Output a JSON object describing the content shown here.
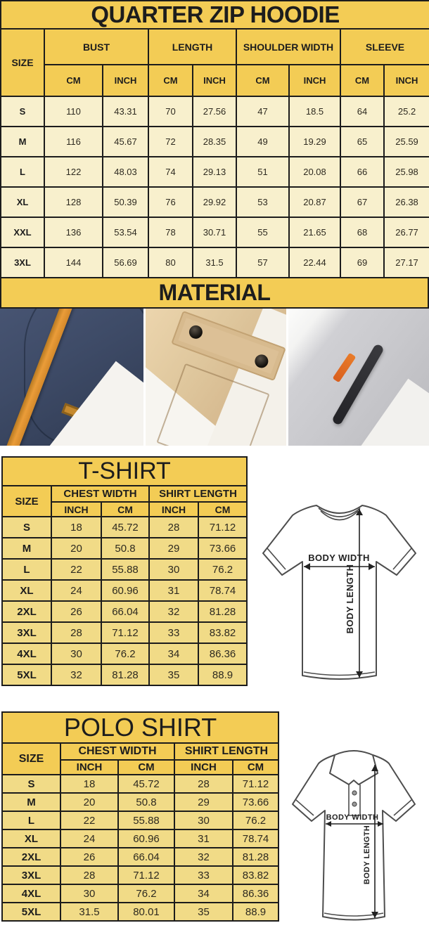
{
  "colors": {
    "header_gold": "#f3cc55",
    "hoodie_row_cream": "#f8f0cd",
    "shirt_row_gold": "#f1db87",
    "table_border": "#1c1c1c",
    "accent_orange": "#e8943a",
    "fabric_navy": "#3c4963",
    "fabric_khaki": "#d8bc92",
    "fabric_gray": "#c6c6ca"
  },
  "hoodie_table": {
    "title": "QUARTER ZIP HOODIE",
    "size_label": "SIZE",
    "col_groups": [
      "BUST",
      "LENGTH",
      "SHOULDER WIDTH",
      "SLEEVE"
    ],
    "unit_labels": [
      "CM",
      "INCH"
    ],
    "rows": [
      {
        "size": "S",
        "values": [
          "110",
          "43.31",
          "70",
          "27.56",
          "47",
          "18.5",
          "64",
          "25.2"
        ]
      },
      {
        "size": "M",
        "values": [
          "116",
          "45.67",
          "72",
          "28.35",
          "49",
          "19.29",
          "65",
          "25.59"
        ]
      },
      {
        "size": "L",
        "values": [
          "122",
          "48.03",
          "74",
          "29.13",
          "51",
          "20.08",
          "66",
          "25.98"
        ]
      },
      {
        "size": "XL",
        "values": [
          "128",
          "50.39",
          "76",
          "29.92",
          "53",
          "20.87",
          "67",
          "26.38"
        ]
      },
      {
        "size": "XXL",
        "values": [
          "136",
          "53.54",
          "78",
          "30.71",
          "55",
          "21.65",
          "68",
          "26.77"
        ]
      },
      {
        "size": "3XL",
        "values": [
          "144",
          "56.69",
          "80",
          "31.5",
          "57",
          "22.44",
          "69",
          "27.17"
        ]
      }
    ]
  },
  "material": {
    "title": "MATERIAL",
    "photos": [
      {
        "name": "navy-fleece-with-orange-strap"
      },
      {
        "name": "khaki-cargo-pocket-with-snaps"
      },
      {
        "name": "gray-heather-fleece-with-zipper"
      }
    ]
  },
  "tshirt_table": {
    "title": "T-SHIRT",
    "size_label": "SIZE",
    "col_groups": [
      "CHEST WIDTH",
      "SHIRT LENGTH"
    ],
    "unit_labels": [
      "INCH",
      "CM"
    ],
    "rows": [
      {
        "size": "S",
        "values": [
          "18",
          "45.72",
          "28",
          "71.12"
        ]
      },
      {
        "size": "M",
        "values": [
          "20",
          "50.8",
          "29",
          "73.66"
        ]
      },
      {
        "size": "L",
        "values": [
          "22",
          "55.88",
          "30",
          "76.2"
        ]
      },
      {
        "size": "XL",
        "values": [
          "24",
          "60.96",
          "31",
          "78.74"
        ]
      },
      {
        "size": "2XL",
        "values": [
          "26",
          "66.04",
          "32",
          "81.28"
        ]
      },
      {
        "size": "3XL",
        "values": [
          "28",
          "71.12",
          "33",
          "83.82"
        ]
      },
      {
        "size": "4XL",
        "values": [
          "30",
          "76.2",
          "34",
          "86.36"
        ]
      },
      {
        "size": "5XL",
        "values": [
          "32",
          "81.28",
          "35",
          "88.9"
        ]
      }
    ],
    "diagram": {
      "body_width_label": "BODY WIDTH",
      "body_length_label": "BODY LENGTH"
    }
  },
  "polo_table": {
    "title": "POLO SHIRT",
    "size_label": "SIZE",
    "col_groups": [
      "CHEST WIDTH",
      "SHIRT LENGTH"
    ],
    "unit_labels": [
      "INCH",
      "CM"
    ],
    "rows": [
      {
        "size": "S",
        "values": [
          "18",
          "45.72",
          "28",
          "71.12"
        ]
      },
      {
        "size": "M",
        "values": [
          "20",
          "50.8",
          "29",
          "73.66"
        ]
      },
      {
        "size": "L",
        "values": [
          "22",
          "55.88",
          "30",
          "76.2"
        ]
      },
      {
        "size": "XL",
        "values": [
          "24",
          "60.96",
          "31",
          "78.74"
        ]
      },
      {
        "size": "2XL",
        "values": [
          "26",
          "66.04",
          "32",
          "81.28"
        ]
      },
      {
        "size": "3XL",
        "values": [
          "28",
          "71.12",
          "33",
          "83.82"
        ]
      },
      {
        "size": "4XL",
        "values": [
          "30",
          "76.2",
          "34",
          "86.36"
        ]
      },
      {
        "size": "5XL",
        "values": [
          "31.5",
          "80.01",
          "35",
          "88.9"
        ]
      }
    ],
    "diagram": {
      "body_width_label": "BODY WIDTH",
      "body_length_label": "BODY LENGTH"
    }
  }
}
